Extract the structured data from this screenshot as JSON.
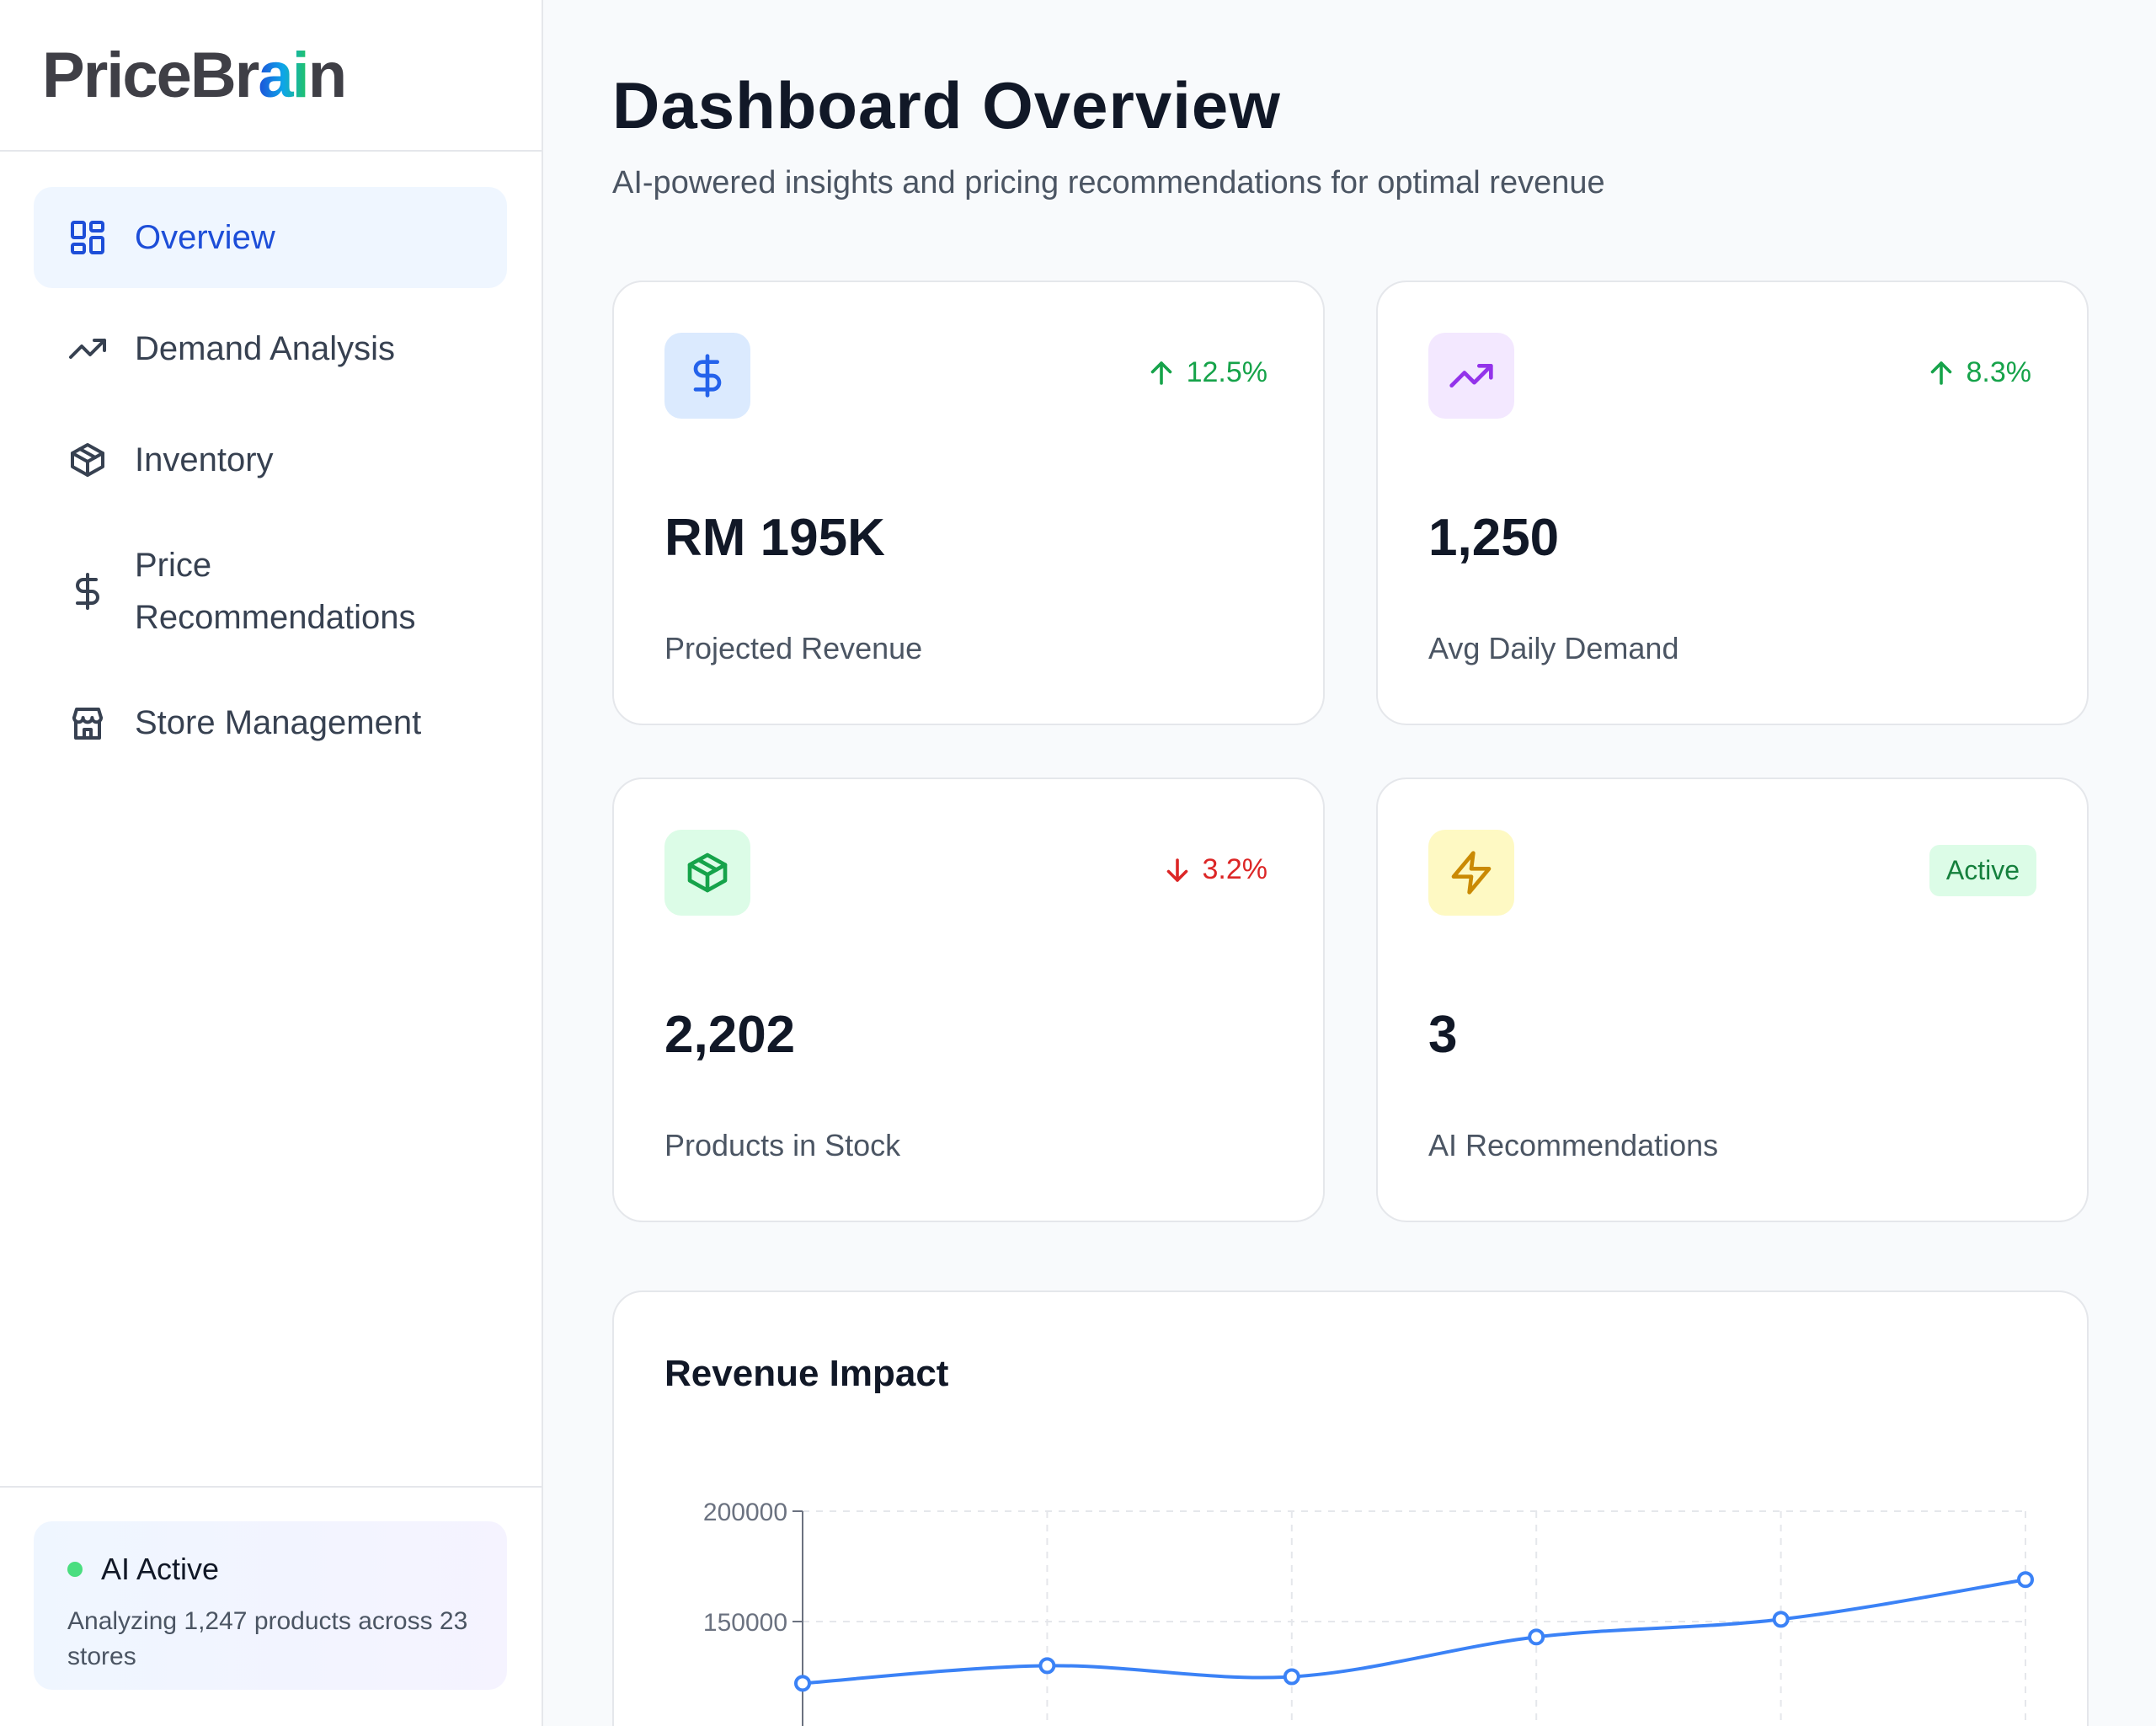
{
  "sidebar": {
    "logo": {
      "part1": "PriceBr",
      "part2": "ai",
      "part3": "n"
    },
    "items": [
      {
        "label": "Overview",
        "icon": "grid-icon",
        "active": true
      },
      {
        "label": "Demand Analysis",
        "icon": "trending-up-icon"
      },
      {
        "label": "Inventory",
        "icon": "package-icon"
      },
      {
        "label": "Price\nRecommendations",
        "icon": "dollar-icon"
      },
      {
        "label": "Store Management",
        "icon": "store-icon"
      }
    ],
    "status": {
      "title": "AI Active",
      "description": "Analyzing 1,247 products across 23 stores"
    }
  },
  "main": {
    "title": "Dashboard Overview",
    "subtitle": "AI-powered insights and pricing recommendations for optimal revenue",
    "stats": [
      {
        "value": "RM 195K",
        "caption": "Projected Revenue",
        "change": "12.5%",
        "trend": "up",
        "icon": "dollar-icon",
        "icon_bg": "#dbeafe",
        "icon_color": "#2563eb"
      },
      {
        "value": "1,250",
        "caption": "Avg Daily Demand",
        "change": "8.3%",
        "trend": "up",
        "icon": "trending-up-icon",
        "icon_bg": "#f3e8ff",
        "icon_color": "#9333ea"
      },
      {
        "value": "2,202",
        "caption": "Products in Stock",
        "change": "3.2%",
        "trend": "down",
        "icon": "package-icon",
        "icon_bg": "#dcfce7",
        "icon_color": "#16a34a"
      },
      {
        "value": "3",
        "caption": "AI Recommendations",
        "badge": "Active",
        "icon": "zap-icon",
        "icon_bg": "#fef9c3",
        "icon_color": "#ca8a04"
      }
    ],
    "revenue_chart_title": "Revenue Impact"
  },
  "chart_data": {
    "type": "line",
    "title": "Revenue Impact",
    "x": [
      0,
      1,
      2,
      3,
      4,
      5
    ],
    "series": [
      {
        "values": [
          122000,
          130000,
          125000,
          143000,
          151000,
          169000
        ],
        "color": "#3b82f6"
      }
    ],
    "ytick_labels": [
      "200000",
      "150000"
    ],
    "ylim": [
      0,
      200000
    ],
    "grid": true
  }
}
